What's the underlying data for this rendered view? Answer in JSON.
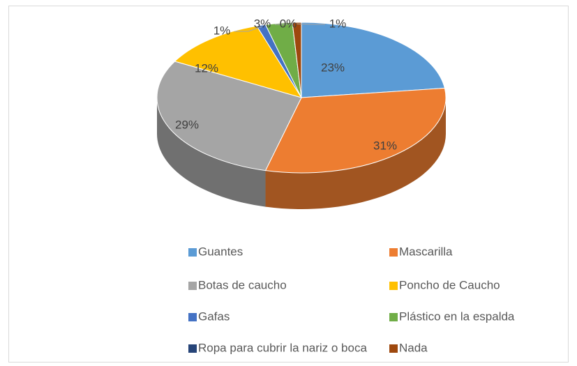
{
  "chart_data": {
    "type": "pie",
    "categories": [
      "Guantes",
      "Mascarilla",
      "Botas de caucho",
      "Poncho de Caucho",
      "Gafas",
      "Plástico en la espalda",
      "Ropa para cubrir la nariz o boca",
      "Nada"
    ],
    "values": [
      23,
      31,
      29,
      12,
      1,
      3,
      0,
      1
    ],
    "value_labels": [
      "23%",
      "31%",
      "29%",
      "12%",
      "1%",
      "3%",
      "0%",
      "1%"
    ],
    "colors": [
      "#5b9bd5",
      "#ed7d31",
      "#a5a5a5",
      "#ffc000",
      "#4472c4",
      "#70ad47",
      "#264478",
      "#9e480e"
    ],
    "legend": "bottom"
  }
}
